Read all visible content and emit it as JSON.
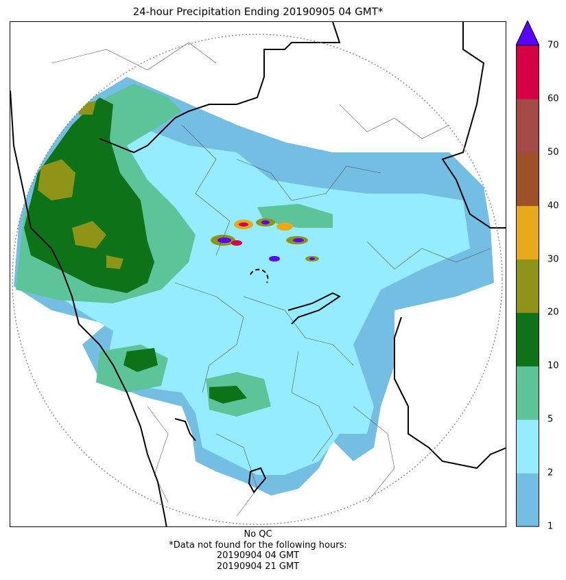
{
  "title": "24-hour Precipitation Ending 20190905 04 GMT*",
  "colorbar": {
    "ticks": [
      "1",
      "2",
      "5",
      "10",
      "20",
      "30",
      "40",
      "50",
      "60",
      "70"
    ],
    "bins": [
      {
        "from": 1,
        "to": 2,
        "color": "#74bde3"
      },
      {
        "from": 2,
        "to": 5,
        "color": "#95ecfe"
      },
      {
        "from": 5,
        "to": 10,
        "color": "#5dc49a"
      },
      {
        "from": 10,
        "to": 20,
        "color": "#0e7318"
      },
      {
        "from": 20,
        "to": 30,
        "color": "#8d9417"
      },
      {
        "from": 30,
        "to": 40,
        "color": "#e8aa1b"
      },
      {
        "from": 40,
        "to": 50,
        "color": "#9e5127"
      },
      {
        "from": 50,
        "to": 60,
        "color": "#a44946"
      },
      {
        "from": 60,
        "to": 70,
        "color": "#d50046"
      }
    ],
    "over_color": "#5a00ff"
  },
  "footer": {
    "qc": "No QC",
    "note": "*Data not found for the following hours:",
    "missing_hours": [
      "20190904 04 GMT",
      "20190904 21 GMT"
    ]
  },
  "colors": {
    "state_border": "#000000",
    "district_border": "#555555",
    "range_ring": "#888888"
  }
}
